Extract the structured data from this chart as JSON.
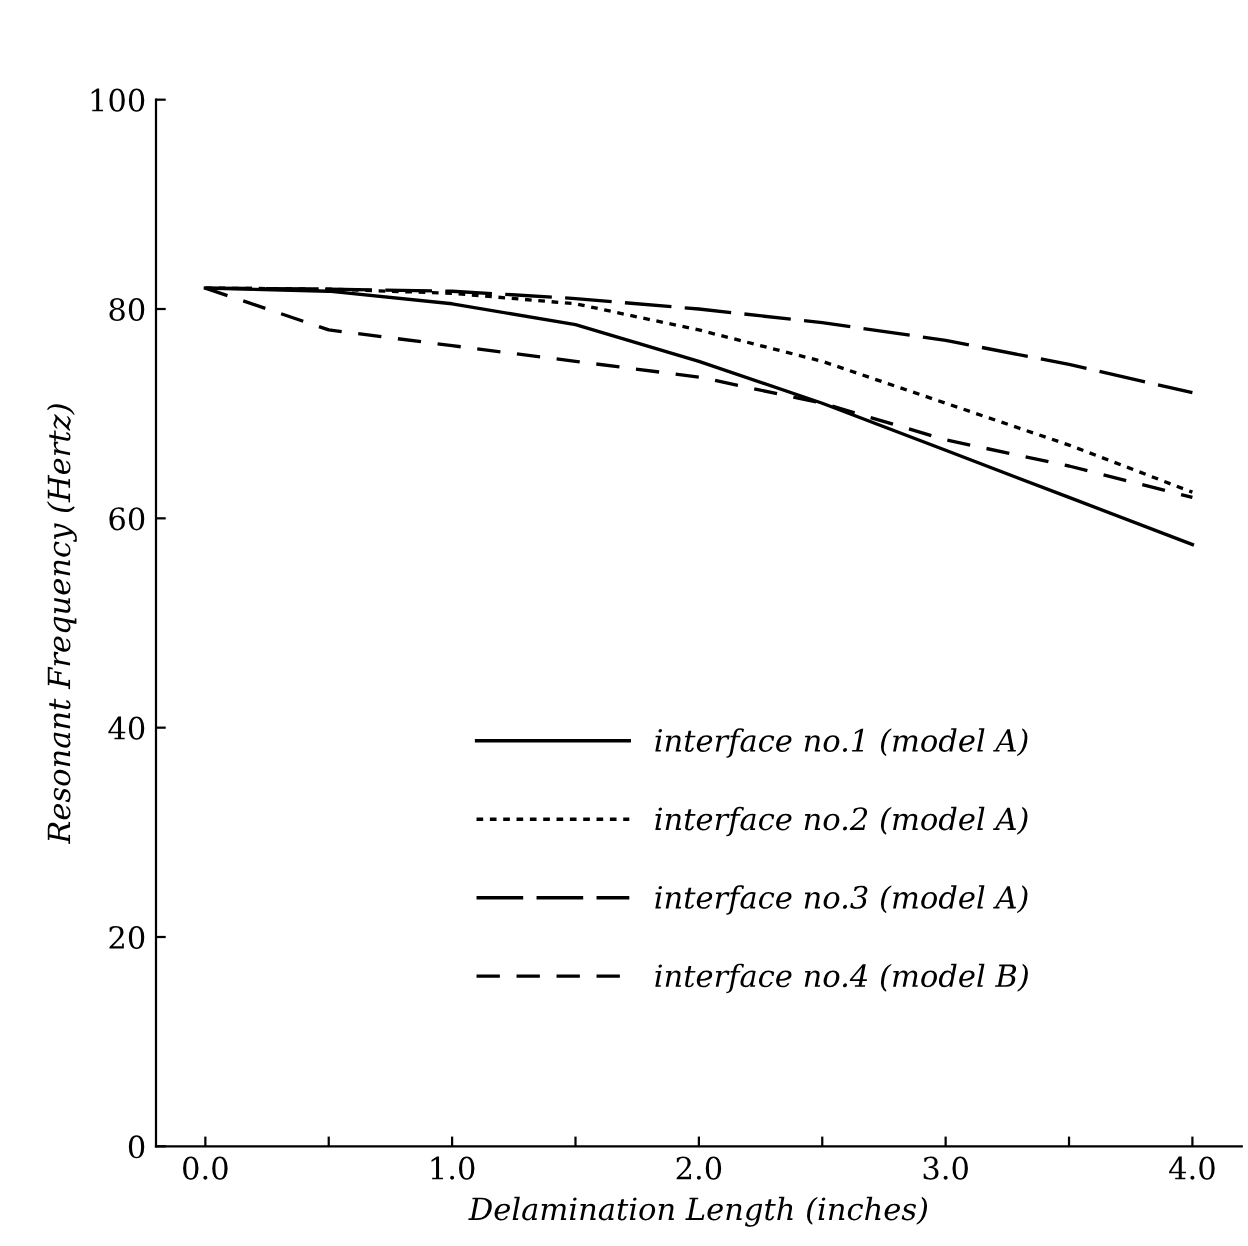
{
  "chart_data": {
    "type": "line",
    "xlabel": "Delamination Length (inches)",
    "ylabel": "Resonant Frequency (Hertz)",
    "xlim": [
      -0.2,
      4.2
    ],
    "ylim": [
      0,
      100
    ],
    "xticks": [
      {
        "value": 0,
        "label": "0.0"
      },
      {
        "value": 0.5,
        "label": null
      },
      {
        "value": 1,
        "label": "1.0"
      },
      {
        "value": 1.5,
        "label": null
      },
      {
        "value": 2,
        "label": "2.0"
      },
      {
        "value": 2.5,
        "label": null
      },
      {
        "value": 3,
        "label": "3.0"
      },
      {
        "value": 3.5,
        "label": null
      },
      {
        "value": 4,
        "label": "4.0"
      }
    ],
    "yticks": [
      0,
      20,
      40,
      60,
      80,
      100
    ],
    "x": [
      0,
      0.5,
      1,
      1.5,
      2,
      2.5,
      3,
      3.5,
      4
    ],
    "legend": "bottom",
    "grid": false,
    "marker": "none",
    "series": [
      {
        "name": "interface no.1 (model A)",
        "color": "#000000",
        "line_style": "solid",
        "values": [
          82,
          81.7,
          80.5,
          78.5,
          75,
          71,
          66.5,
          62,
          57.5
        ]
      },
      {
        "name": "interface no.2 (model A)",
        "color": "#000000",
        "line_style": "dotted",
        "values": [
          82,
          81.9,
          81.5,
          80.5,
          78,
          75,
          71,
          67,
          62.5
        ]
      },
      {
        "name": "interface no.3 (model A)",
        "color": "#000000",
        "line_style": "long dashed",
        "values": [
          82,
          81.9,
          81.7,
          81,
          80,
          78.7,
          77,
          74.7,
          72
        ]
      },
      {
        "name": "interface no.4 (model B)",
        "color": "#000000",
        "line_style": "dashed",
        "values": [
          82,
          78,
          76.5,
          75,
          73.5,
          71,
          67.5,
          65,
          62
        ]
      }
    ]
  }
}
